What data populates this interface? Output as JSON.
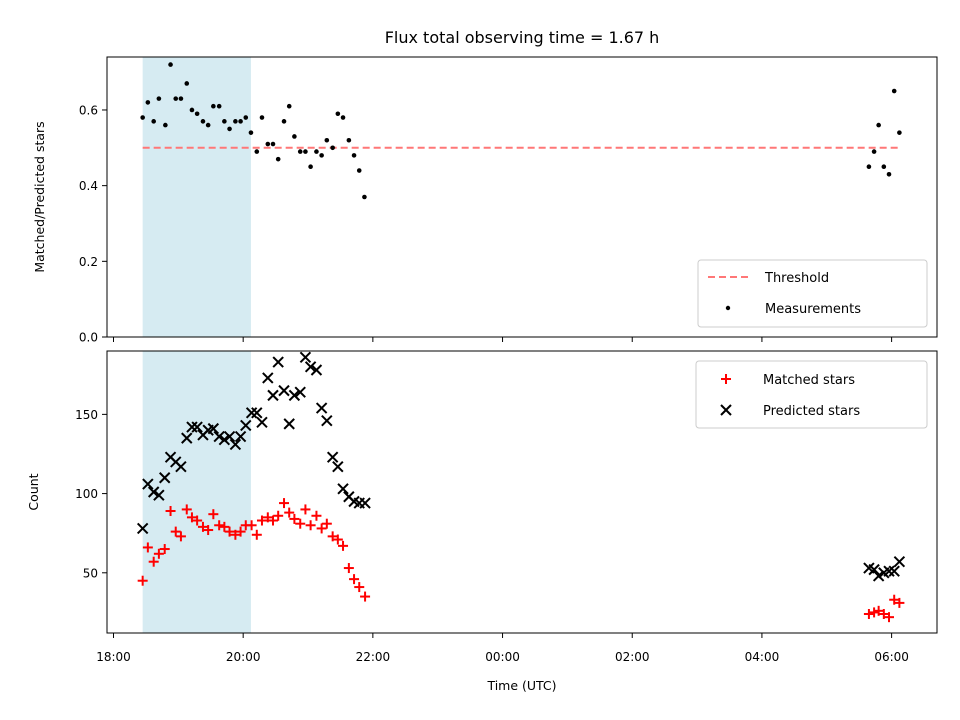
{
  "chart_data": {
    "title": "Flux total observing time = 1.67 h",
    "shaded_span_hours": [
      18.45,
      20.12
    ],
    "xlabel": "Time (UTC)",
    "x_axis": {
      "range_hours": [
        17.9,
        30.7
      ],
      "ticks": [
        18,
        20,
        22,
        24,
        26,
        28,
        30
      ],
      "tick_labels": [
        "18:00",
        "20:00",
        "22:00",
        "00:00",
        "02:00",
        "04:00",
        "06:00"
      ]
    },
    "top": {
      "type": "scatter",
      "ylabel": "Matched/Predicted stars",
      "ylim": [
        0,
        0.74
      ],
      "yticks": [
        0.0,
        0.2,
        0.4,
        0.6
      ],
      "ytick_labels": [
        "0.0",
        "0.2",
        "0.4",
        "0.6"
      ],
      "threshold": {
        "name": "Threshold",
        "value": 0.5,
        "x_range_hours": [
          18.45,
          30.15
        ],
        "color": "#ff7777"
      },
      "measurements": {
        "name": "Measurements",
        "x": [
          18.45,
          18.53,
          18.62,
          18.7,
          18.8,
          18.88,
          18.96,
          19.04,
          19.13,
          19.21,
          19.29,
          19.38,
          19.46,
          19.54,
          19.63,
          19.71,
          19.79,
          19.88,
          19.96,
          20.04,
          20.12,
          20.21,
          20.29,
          20.38,
          20.46,
          20.54,
          20.63,
          20.71,
          20.79,
          20.88,
          20.96,
          21.04,
          21.13,
          21.21,
          21.29,
          21.38,
          21.46,
          21.54,
          21.63,
          21.71,
          21.79,
          21.87,
          29.65,
          29.73,
          29.8,
          29.88,
          29.96,
          30.04,
          30.12
        ],
        "y": [
          0.58,
          0.62,
          0.57,
          0.63,
          0.56,
          0.72,
          0.63,
          0.63,
          0.67,
          0.6,
          0.59,
          0.57,
          0.56,
          0.61,
          0.61,
          0.57,
          0.55,
          0.57,
          0.57,
          0.58,
          0.54,
          0.49,
          0.58,
          0.51,
          0.51,
          0.47,
          0.57,
          0.61,
          0.53,
          0.49,
          0.49,
          0.45,
          0.49,
          0.48,
          0.52,
          0.5,
          0.59,
          0.58,
          0.52,
          0.48,
          0.44,
          0.37,
          0.45,
          0.49,
          0.56,
          0.45,
          0.43,
          0.65,
          0.54
        ]
      },
      "legend": [
        "Threshold",
        "Measurements"
      ]
    },
    "bottom": {
      "type": "scatter",
      "ylabel": "Count",
      "ylim": [
        12,
        190
      ],
      "yticks": [
        50,
        100,
        150
      ],
      "ytick_labels": [
        "50",
        "100",
        "150"
      ],
      "series": [
        {
          "name": "Matched stars",
          "marker": "+",
          "color": "#ff0000",
          "x": [
            18.45,
            18.53,
            18.62,
            18.7,
            18.79,
            18.88,
            18.96,
            19.04,
            19.13,
            19.21,
            19.29,
            19.38,
            19.46,
            19.54,
            19.63,
            19.71,
            19.79,
            19.88,
            19.96,
            20.04,
            20.13,
            20.21,
            20.29,
            20.38,
            20.46,
            20.54,
            20.63,
            20.71,
            20.79,
            20.88,
            20.96,
            21.04,
            21.13,
            21.21,
            21.29,
            21.38,
            21.46,
            21.54,
            21.63,
            21.71,
            21.79,
            21.88,
            29.65,
            29.73,
            29.8,
            29.88,
            29.96,
            30.04,
            30.12
          ],
          "y": [
            45,
            66,
            57,
            62,
            65,
            89,
            76,
            73,
            90,
            85,
            83,
            79,
            77,
            87,
            80,
            79,
            76,
            74,
            76,
            80,
            80,
            74,
            83,
            85,
            83,
            86,
            94,
            88,
            84,
            81,
            90,
            80,
            86,
            78,
            81,
            73,
            71,
            67,
            53,
            46,
            41,
            35,
            24,
            25,
            26,
            24,
            22,
            33,
            31
          ]
        },
        {
          "name": "Predicted stars",
          "marker": "x",
          "color": "#000000",
          "x": [
            18.45,
            18.53,
            18.62,
            18.7,
            18.79,
            18.88,
            18.96,
            19.04,
            19.13,
            19.21,
            19.29,
            19.38,
            19.46,
            19.54,
            19.63,
            19.71,
            19.79,
            19.88,
            19.96,
            20.04,
            20.13,
            20.21,
            20.29,
            20.38,
            20.46,
            20.54,
            20.63,
            20.71,
            20.79,
            20.88,
            20.96,
            21.04,
            21.13,
            21.21,
            21.29,
            21.38,
            21.46,
            21.54,
            21.63,
            21.71,
            21.79,
            21.88,
            29.65,
            29.73,
            29.8,
            29.88,
            29.96,
            30.04,
            30.12
          ],
          "y": [
            78,
            106,
            101,
            99,
            110,
            123,
            120,
            117,
            135,
            142,
            142,
            137,
            140,
            141,
            136,
            134,
            136,
            131,
            136,
            143,
            151,
            151,
            145,
            173,
            162,
            183,
            165,
            144,
            162,
            164,
            186,
            180,
            178,
            154,
            146,
            123,
            117,
            103,
            98,
            95,
            94,
            94,
            53,
            52,
            48,
            50,
            51,
            51,
            57
          ]
        }
      ],
      "legend": [
        "Matched stars",
        "Predicted stars"
      ]
    }
  }
}
